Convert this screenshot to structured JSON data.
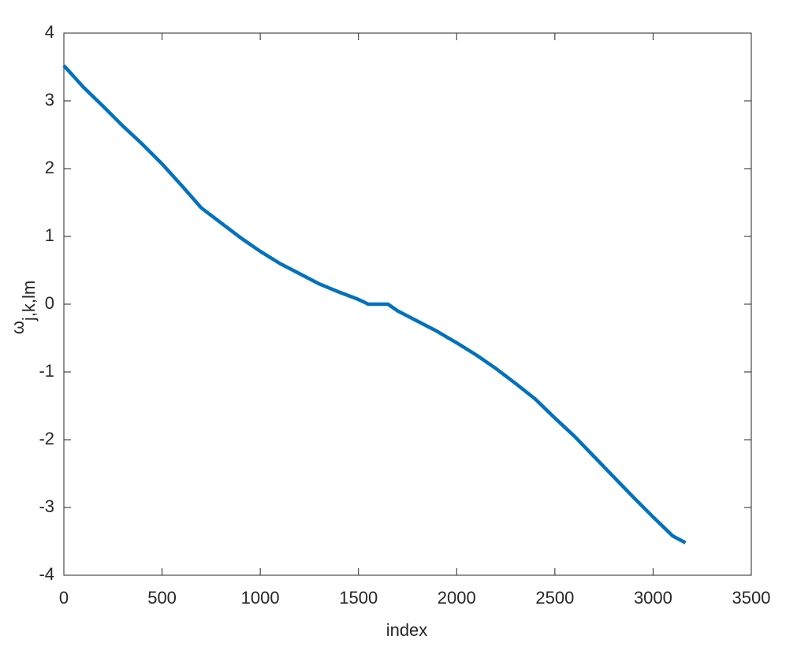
{
  "chart_data": {
    "type": "line",
    "xlabel": "index",
    "ylabel": [
      "ω",
      "j,k,lm"
    ],
    "x": [
      0,
      100,
      200,
      300,
      400,
      500,
      600,
      700,
      800,
      900,
      1000,
      1100,
      1200,
      1300,
      1400,
      1500,
      1550,
      1650,
      1700,
      1800,
      1900,
      2000,
      2100,
      2200,
      2300,
      2400,
      2500,
      2600,
      2700,
      2800,
      2900,
      3000,
      3100,
      3165
    ],
    "series": [
      {
        "color": "#0072bd",
        "values": [
          3.52,
          3.2,
          2.92,
          2.63,
          2.36,
          2.07,
          1.75,
          1.42,
          1.2,
          0.98,
          0.78,
          0.6,
          0.45,
          0.3,
          0.18,
          0.07,
          0.0,
          0.0,
          -0.1,
          -0.25,
          -0.4,
          -0.57,
          -0.75,
          -0.95,
          -1.17,
          -1.4,
          -1.68,
          -1.95,
          -2.25,
          -2.55,
          -2.85,
          -3.14,
          -3.42,
          -3.52
        ]
      }
    ],
    "xlim": [
      0,
      3500
    ],
    "xticks": [
      0,
      500,
      1000,
      1500,
      2000,
      2500,
      3000,
      3500
    ],
    "ylim": [
      -4,
      4
    ],
    "yticks": [
      -4,
      -3,
      -2,
      -1,
      0,
      1,
      2,
      3,
      4
    ],
    "grid": false
  }
}
